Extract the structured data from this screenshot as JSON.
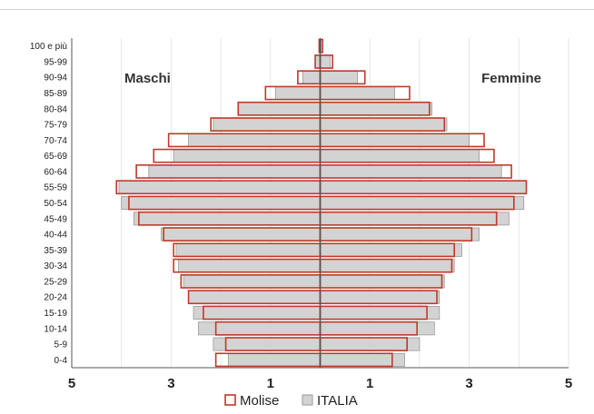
{
  "chart_data": {
    "type": "bar",
    "orientation": "horizontal-butterfly",
    "categories": [
      "0-4",
      "5-9",
      "10-14",
      "15-19",
      "20-24",
      "25-29",
      "30-34",
      "35-39",
      "40-44",
      "45-49",
      "50-54",
      "55-59",
      "60-64",
      "65-69",
      "70-74",
      "75-79",
      "80-84",
      "85-89",
      "90-94",
      "95-99",
      "100 e più"
    ],
    "series": [
      {
        "name": "Molise",
        "side": "Maschi",
        "values": [
          2.1,
          1.9,
          2.1,
          2.35,
          2.65,
          2.8,
          2.95,
          2.95,
          3.15,
          3.65,
          3.85,
          4.1,
          3.7,
          3.35,
          3.05,
          2.2,
          1.65,
          1.1,
          0.45,
          0.1,
          0.02
        ]
      },
      {
        "name": "Molise",
        "side": "Femmine",
        "values": [
          1.45,
          1.75,
          1.95,
          2.15,
          2.35,
          2.45,
          2.65,
          2.7,
          3.05,
          3.55,
          3.9,
          4.15,
          3.85,
          3.5,
          3.3,
          2.5,
          2.2,
          1.8,
          0.9,
          0.25,
          0.05
        ]
      },
      {
        "name": "ITALIA",
        "side": "Maschi",
        "values": [
          1.85,
          2.15,
          2.45,
          2.55,
          2.65,
          2.75,
          2.85,
          2.9,
          3.2,
          3.75,
          4.0,
          4.05,
          3.45,
          2.95,
          2.65,
          2.15,
          1.65,
          0.9,
          0.35,
          0.1,
          0.01
        ]
      },
      {
        "name": "ITALIA",
        "side": "Femmine",
        "values": [
          1.7,
          2.0,
          2.3,
          2.4,
          2.4,
          2.5,
          2.7,
          2.85,
          3.2,
          3.8,
          4.1,
          4.15,
          3.65,
          3.2,
          3.0,
          2.55,
          2.25,
          1.5,
          0.75,
          0.2,
          0.02
        ]
      }
    ],
    "left_label": "Maschi",
    "right_label": "Femmine",
    "xlim": [
      -5,
      5
    ],
    "x_ticks": [
      -5,
      -3,
      -1,
      1,
      3,
      5
    ],
    "x_tick_labels": [
      "5",
      "3",
      "1",
      "1",
      "3",
      "5"
    ],
    "grid": true,
    "legend_placement": "bottom",
    "colors": {
      "Molise": "#c0392b",
      "ITALIA": "#d3d3d3",
      "ITALIA_border": "#9a9a9a",
      "axis": "#555555",
      "grid": "#e6e6e6"
    }
  }
}
